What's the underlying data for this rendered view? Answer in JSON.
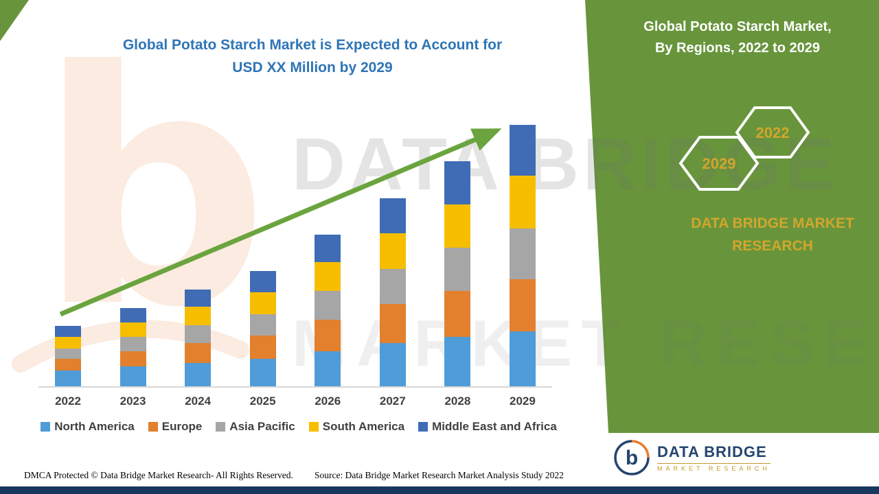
{
  "header": {
    "title_line1": "Global Potato Starch Market is Expected to Account for",
    "title_line2": "USD XX Million by 2029"
  },
  "right_panel": {
    "heading_line1": "Global Potato Starch Market,",
    "heading_line2": "By Regions, 2022 to 2029",
    "hexagons": [
      {
        "label": "2029"
      },
      {
        "label": "2022"
      }
    ],
    "brand_line1": "DATA BRIDGE MARKET",
    "brand_line2": "RESEARCH",
    "bg_color": "#68953c",
    "gold_color": "#d2a62c"
  },
  "watermark": {
    "line1": "DATA BRIDGE",
    "line2": "MARKET RESEARCH",
    "letter": "b"
  },
  "footer": {
    "left": "DMCA Protected © Data Bridge Market Research- All Rights Reserved.",
    "source": "Source: Data Bridge Market Research Market Analysis Study 2022"
  },
  "logo": {
    "letter": "b",
    "name": "DATA BRIDGE",
    "sub": "MARKET RESEARCH",
    "navy": "#24456e",
    "orange": "#e87d2e"
  },
  "chart_data": {
    "type": "bar",
    "stacked": true,
    "title": "Global Potato Starch Market is Expected to Account for USD XX Million by 2029",
    "xlabel": "",
    "ylabel": "",
    "categories": [
      "2022",
      "2023",
      "2024",
      "2025",
      "2026",
      "2027",
      "2028",
      "2029"
    ],
    "series": [
      {
        "name": "North America",
        "color": "#4f9cd9",
        "values": [
          6,
          7.5,
          9,
          10.5,
          13.5,
          16.5,
          19,
          21
        ]
      },
      {
        "name": "Europe",
        "color": "#e2802e",
        "values": [
          4.5,
          6,
          7.5,
          9,
          12,
          15,
          17.5,
          20
        ]
      },
      {
        "name": "Asia Pacific",
        "color": "#a6a6a6",
        "values": [
          4,
          5.5,
          7,
          8,
          11,
          13.5,
          16.5,
          19.5
        ]
      },
      {
        "name": "South America",
        "color": "#f7be00",
        "values": [
          4.5,
          5.5,
          7,
          8.5,
          11,
          13.5,
          16.5,
          20
        ]
      },
      {
        "name": "Middle East and Africa",
        "color": "#3f6cb5",
        "values": [
          4,
          5.5,
          6.5,
          8,
          10.5,
          13.5,
          16.5,
          19.5
        ]
      }
    ],
    "ylim": [
      0,
      105
    ],
    "grid": false,
    "legend_position": "bottom",
    "annotations": [
      "upward green trend arrow from 2022 to 2029"
    ],
    "value_scale": "y-axis unlabeled in source (USD XX Million); values are relative estimates",
    "trend_arrow_color": "#6ba43e"
  }
}
